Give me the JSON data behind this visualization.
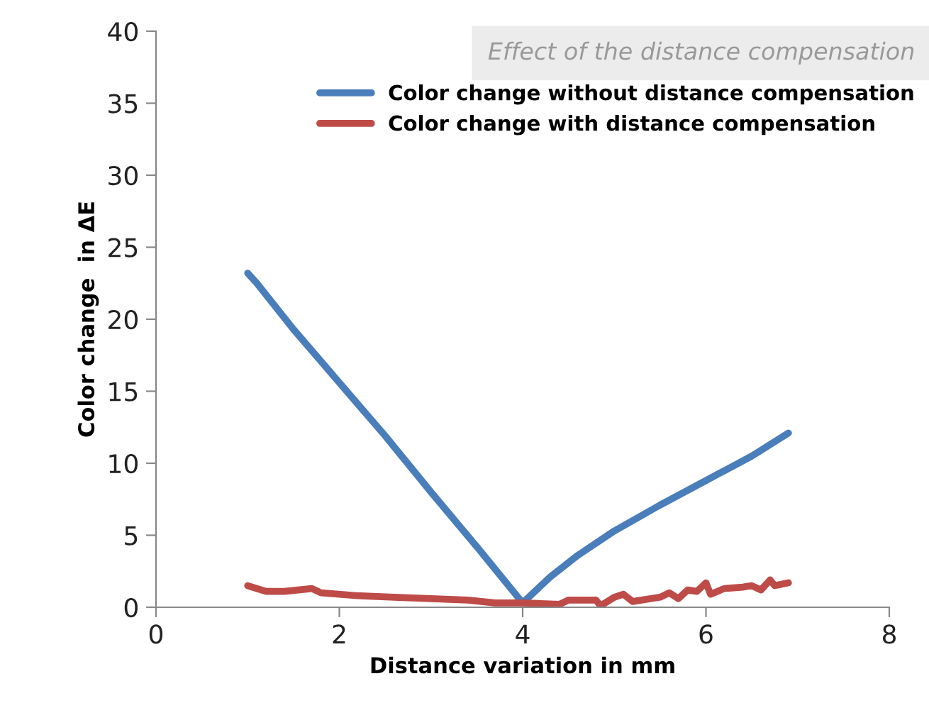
{
  "chart_data": {
    "type": "line",
    "title": "Effect of the distance compensation",
    "xlabel": "Distance variation in mm",
    "ylabel": "Color change  in ΔE",
    "xlim": [
      0,
      8
    ],
    "xticks": [
      0,
      2,
      4,
      6,
      8
    ],
    "ylim": [
      0,
      40
    ],
    "yticks": [
      0,
      5,
      10,
      15,
      20,
      25,
      30,
      35,
      40
    ],
    "grid": false,
    "legend": "top right",
    "marker": "none",
    "line_style": "solid",
    "series": [
      {
        "name": "Color change without distance compensation",
        "color": "#4a7ebb",
        "x": [
          1,
          1.1,
          1.5,
          2,
          2.5,
          3,
          3.5,
          4,
          4.3,
          4.6,
          5,
          5.5,
          6,
          6.5,
          6.9
        ],
        "values": [
          23.2,
          22.5,
          19.3,
          15.6,
          11.9,
          8.0,
          4.2,
          0.3,
          2.1,
          3.6,
          5.3,
          7.1,
          8.8,
          10.5,
          12.1
        ]
      },
      {
        "name": "Color change with distance compensation",
        "color": "#be4b48",
        "x": [
          1,
          1.2,
          1.4,
          1.7,
          1.8,
          2.2,
          2.6,
          3,
          3.4,
          3.7,
          4,
          4.4,
          4.5,
          4.8,
          4.85,
          5.0,
          5.1,
          5.2,
          5.5,
          5.6,
          5.7,
          5.8,
          5.9,
          6.0,
          6.05,
          6.2,
          6.4,
          6.5,
          6.6,
          6.7,
          6.75,
          6.9
        ],
        "values": [
          1.5,
          1.1,
          1.1,
          1.3,
          1.0,
          0.8,
          0.7,
          0.6,
          0.5,
          0.3,
          0.3,
          0.2,
          0.5,
          0.5,
          0.1,
          0.7,
          0.9,
          0.4,
          0.7,
          1.0,
          0.6,
          1.2,
          1.1,
          1.7,
          0.9,
          1.3,
          1.4,
          1.5,
          1.2,
          1.9,
          1.5,
          1.7
        ]
      }
    ]
  }
}
